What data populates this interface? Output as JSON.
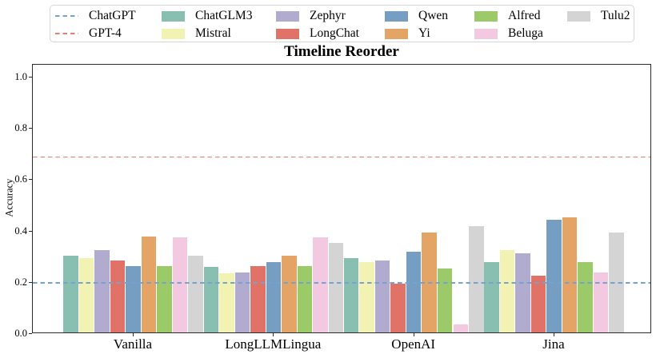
{
  "chart_data": {
    "type": "bar",
    "title": "Timeline Reorder",
    "xlabel": "",
    "ylabel": "Accuracy",
    "ylim": [
      0,
      1.05
    ],
    "yticks": [
      0.0,
      0.2,
      0.4,
      0.6,
      0.8,
      1.0
    ],
    "ytick_labels": [
      "0.0",
      "0.2",
      "0.4",
      "0.6",
      "0.8",
      "1.0"
    ],
    "grid": false,
    "legend_position": "top",
    "categories": [
      "Vanilla",
      "LongLLMLingua",
      "OpenAI",
      "Jina"
    ],
    "series": [
      {
        "name": "ChatGLM3",
        "color": "#88BFB0",
        "values": [
          0.3,
          0.255,
          0.29,
          0.275
        ]
      },
      {
        "name": "Mistral",
        "color": "#F2F2B3",
        "values": [
          0.29,
          0.23,
          0.275,
          0.32
        ]
      },
      {
        "name": "Zephyr",
        "color": "#B1ABCF",
        "values": [
          0.32,
          0.235,
          0.28,
          0.31
        ]
      },
      {
        "name": "LongChat",
        "color": "#E17268",
        "values": [
          0.28,
          0.26,
          0.19,
          0.22
        ]
      },
      {
        "name": "Qwen",
        "color": "#769DC2",
        "values": [
          0.26,
          0.275,
          0.315,
          0.44
        ]
      },
      {
        "name": "Yi",
        "color": "#E3A465",
        "values": [
          0.375,
          0.3,
          0.39,
          0.45
        ]
      },
      {
        "name": "Alfred",
        "color": "#9DCA69",
        "values": [
          0.26,
          0.26,
          0.25,
          0.275
        ]
      },
      {
        "name": "Beluga",
        "color": "#F2C9E0",
        "values": [
          0.37,
          0.37,
          0.03,
          0.235
        ]
      },
      {
        "name": "Tulu2",
        "color": "#D4D4D4",
        "values": [
          0.3,
          0.35,
          0.415,
          0.39
        ]
      }
    ],
    "hlines": [
      {
        "name": "ChatGPT",
        "value": 0.2,
        "color": "#74A3D1",
        "style": "dashed"
      },
      {
        "name": "GPT-4",
        "value": 0.69,
        "color": "#EE7B70",
        "style": "dashed"
      }
    ]
  }
}
